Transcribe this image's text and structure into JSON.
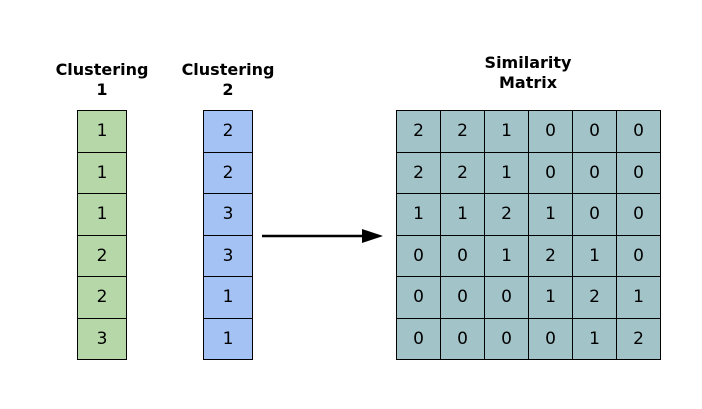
{
  "clustering1": {
    "title_line1": "Clustering",
    "title_line2": "1",
    "values": [
      "1",
      "1",
      "1",
      "2",
      "2",
      "3"
    ],
    "color": "#b6d7a8"
  },
  "clustering2": {
    "title_line1": "Clustering",
    "title_line2": "2",
    "values": [
      "2",
      "2",
      "3",
      "3",
      "1",
      "1"
    ],
    "color": "#a4c2f4"
  },
  "matrix": {
    "title_line1": "Similarity",
    "title_line2": "Matrix",
    "color": "#a2c4c9",
    "rows": [
      [
        "2",
        "2",
        "1",
        "0",
        "0",
        "0"
      ],
      [
        "2",
        "2",
        "1",
        "0",
        "0",
        "0"
      ],
      [
        "1",
        "1",
        "2",
        "1",
        "0",
        "0"
      ],
      [
        "0",
        "0",
        "1",
        "2",
        "1",
        "0"
      ],
      [
        "0",
        "0",
        "0",
        "1",
        "2",
        "1"
      ],
      [
        "0",
        "0",
        "0",
        "0",
        "1",
        "2"
      ]
    ]
  },
  "arrow": {
    "icon": "right-arrow-icon"
  }
}
